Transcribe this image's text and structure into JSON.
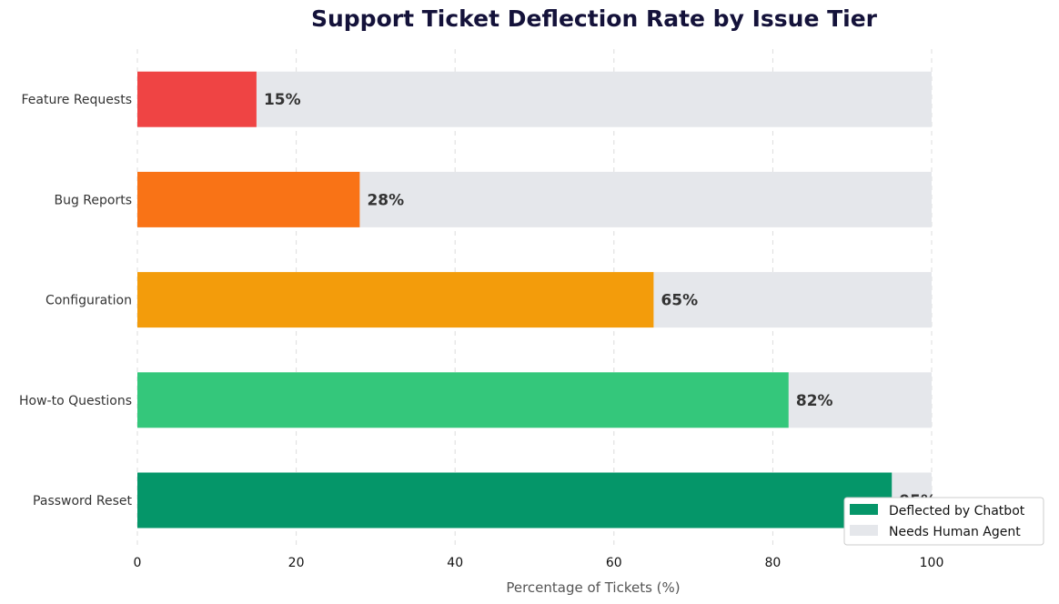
{
  "chart_data": {
    "type": "bar",
    "orientation": "horizontal",
    "stacked": true,
    "title": "Support Ticket Deflection Rate by Issue Tier",
    "xlabel": "Percentage of Tickets (%)",
    "ylabel": "",
    "xlim": [
      0,
      100
    ],
    "x_ticks": [
      0,
      20,
      40,
      60,
      80,
      100
    ],
    "grid": "vertical-dashed",
    "categories": [
      "Password Reset",
      "How-to Questions",
      "Configuration",
      "Bug Reports",
      "Feature Requests"
    ],
    "series": [
      {
        "name": "Deflected by Chatbot",
        "values": [
          95,
          82,
          65,
          28,
          15
        ],
        "colors": [
          "#059669",
          "#34c77b",
          "#f39c0b",
          "#f97316",
          "#ef4444"
        ]
      },
      {
        "name": "Needs Human Agent",
        "values": [
          5,
          18,
          35,
          72,
          85
        ],
        "color": "#e5e7eb"
      }
    ],
    "data_labels": [
      "95%",
      "82%",
      "65%",
      "28%",
      "15%"
    ],
    "legend": {
      "position": "bottom-right",
      "entries": [
        {
          "label": "Deflected by Chatbot",
          "color": "#059669"
        },
        {
          "label": "Needs Human Agent",
          "color": "#e5e7eb"
        }
      ]
    }
  }
}
